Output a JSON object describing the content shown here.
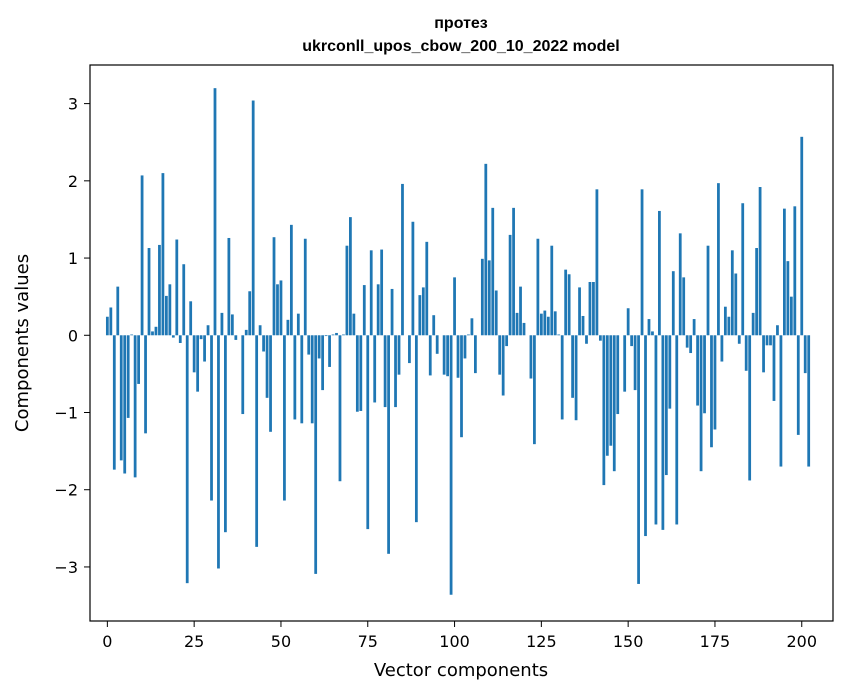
{
  "chart_data": {
    "type": "bar",
    "title": "протез",
    "subtitle": "ukrconll_upos_cbow_200_10_2022 model",
    "xlabel": "Vector components",
    "ylabel": "Components values",
    "xlim": [
      -5,
      209
    ],
    "ylim": [
      -3.7,
      3.5
    ],
    "grid": false,
    "bar_color": "#1f77b4",
    "xticks": [
      0,
      25,
      50,
      75,
      100,
      125,
      150,
      175,
      200
    ],
    "xtick_labels": [
      "0",
      "25",
      "50",
      "75",
      "100",
      "125",
      "150",
      "175",
      "200"
    ],
    "yticks": [
      -3,
      -2,
      -1,
      0,
      1,
      2,
      3
    ],
    "ytick_labels": [
      "−3",
      "−2",
      "−1",
      "0",
      "1",
      "2",
      "3"
    ],
    "values": [
      0.24,
      0.36,
      -1.74,
      0.63,
      -1.62,
      -1.79,
      -1.07,
      0.01,
      -1.84,
      -0.63,
      2.07,
      -1.27,
      1.13,
      0.05,
      0.11,
      1.17,
      2.1,
      0.51,
      0.66,
      -0.03,
      1.24,
      -0.1,
      0.92,
      -3.21,
      0.44,
      -0.48,
      -0.73,
      -0.05,
      -0.34,
      0.13,
      -2.14,
      3.2,
      -3.02,
      0.29,
      -2.55,
      1.26,
      0.27,
      -0.06,
      0.0,
      -1.02,
      0.07,
      0.57,
      3.04,
      -2.74,
      0.13,
      -0.21,
      -0.81,
      -1.25,
      1.27,
      0.66,
      0.71,
      -2.14,
      0.2,
      1.43,
      -1.09,
      0.28,
      -1.14,
      1.25,
      -0.25,
      -1.14,
      -3.09,
      -0.3,
      -0.71,
      -0.01,
      -0.41,
      0.01,
      0.03,
      -1.89,
      0.01,
      1.16,
      1.53,
      0.28,
      -0.99,
      -0.98,
      0.65,
      -2.51,
      1.1,
      -0.87,
      0.66,
      1.11,
      -0.93,
      -2.83,
      0.6,
      -0.93,
      -0.51,
      1.96,
      0.0,
      -0.36,
      1.47,
      -2.42,
      0.52,
      0.62,
      1.21,
      -0.52,
      0.26,
      -0.24,
      0.0,
      -0.51,
      -0.53,
      -3.36,
      0.75,
      -0.55,
      -1.32,
      -0.3,
      0.01,
      0.22,
      -0.49,
      0.0,
      0.99,
      2.22,
      0.97,
      1.65,
      0.58,
      -0.51,
      -0.78,
      -0.14,
      1.3,
      1.65,
      0.29,
      0.63,
      0.16,
      0.0,
      -0.56,
      -1.41,
      1.25,
      0.28,
      0.32,
      0.24,
      1.16,
      0.31,
      0.01,
      -1.09,
      0.85,
      0.79,
      -0.81,
      -1.1,
      0.62,
      0.25,
      -0.11,
      0.69,
      0.69,
      1.89,
      -0.07,
      -1.94,
      -1.56,
      -1.43,
      -1.76,
      -1.02,
      0.0,
      -0.73,
      0.35,
      -0.14,
      -0.71,
      -3.22,
      1.89,
      -2.6,
      0.21,
      0.05,
      -2.45,
      1.61,
      -2.52,
      -1.81,
      -0.95,
      0.83,
      -2.45,
      1.32,
      0.75,
      -0.16,
      -0.23,
      0.21,
      -0.91,
      -1.76,
      -1.01,
      1.16,
      -1.45,
      -1.22,
      1.97,
      -0.34,
      0.37,
      0.24,
      1.1,
      0.8,
      -0.11,
      1.71,
      -0.46,
      -1.88,
      0.29,
      1.13,
      1.92,
      -0.48,
      -0.13,
      -0.13,
      -0.85,
      0.13,
      -1.7,
      1.64,
      0.96,
      0.5,
      1.67,
      -1.29,
      2.57,
      -0.49,
      -1.7
    ]
  }
}
